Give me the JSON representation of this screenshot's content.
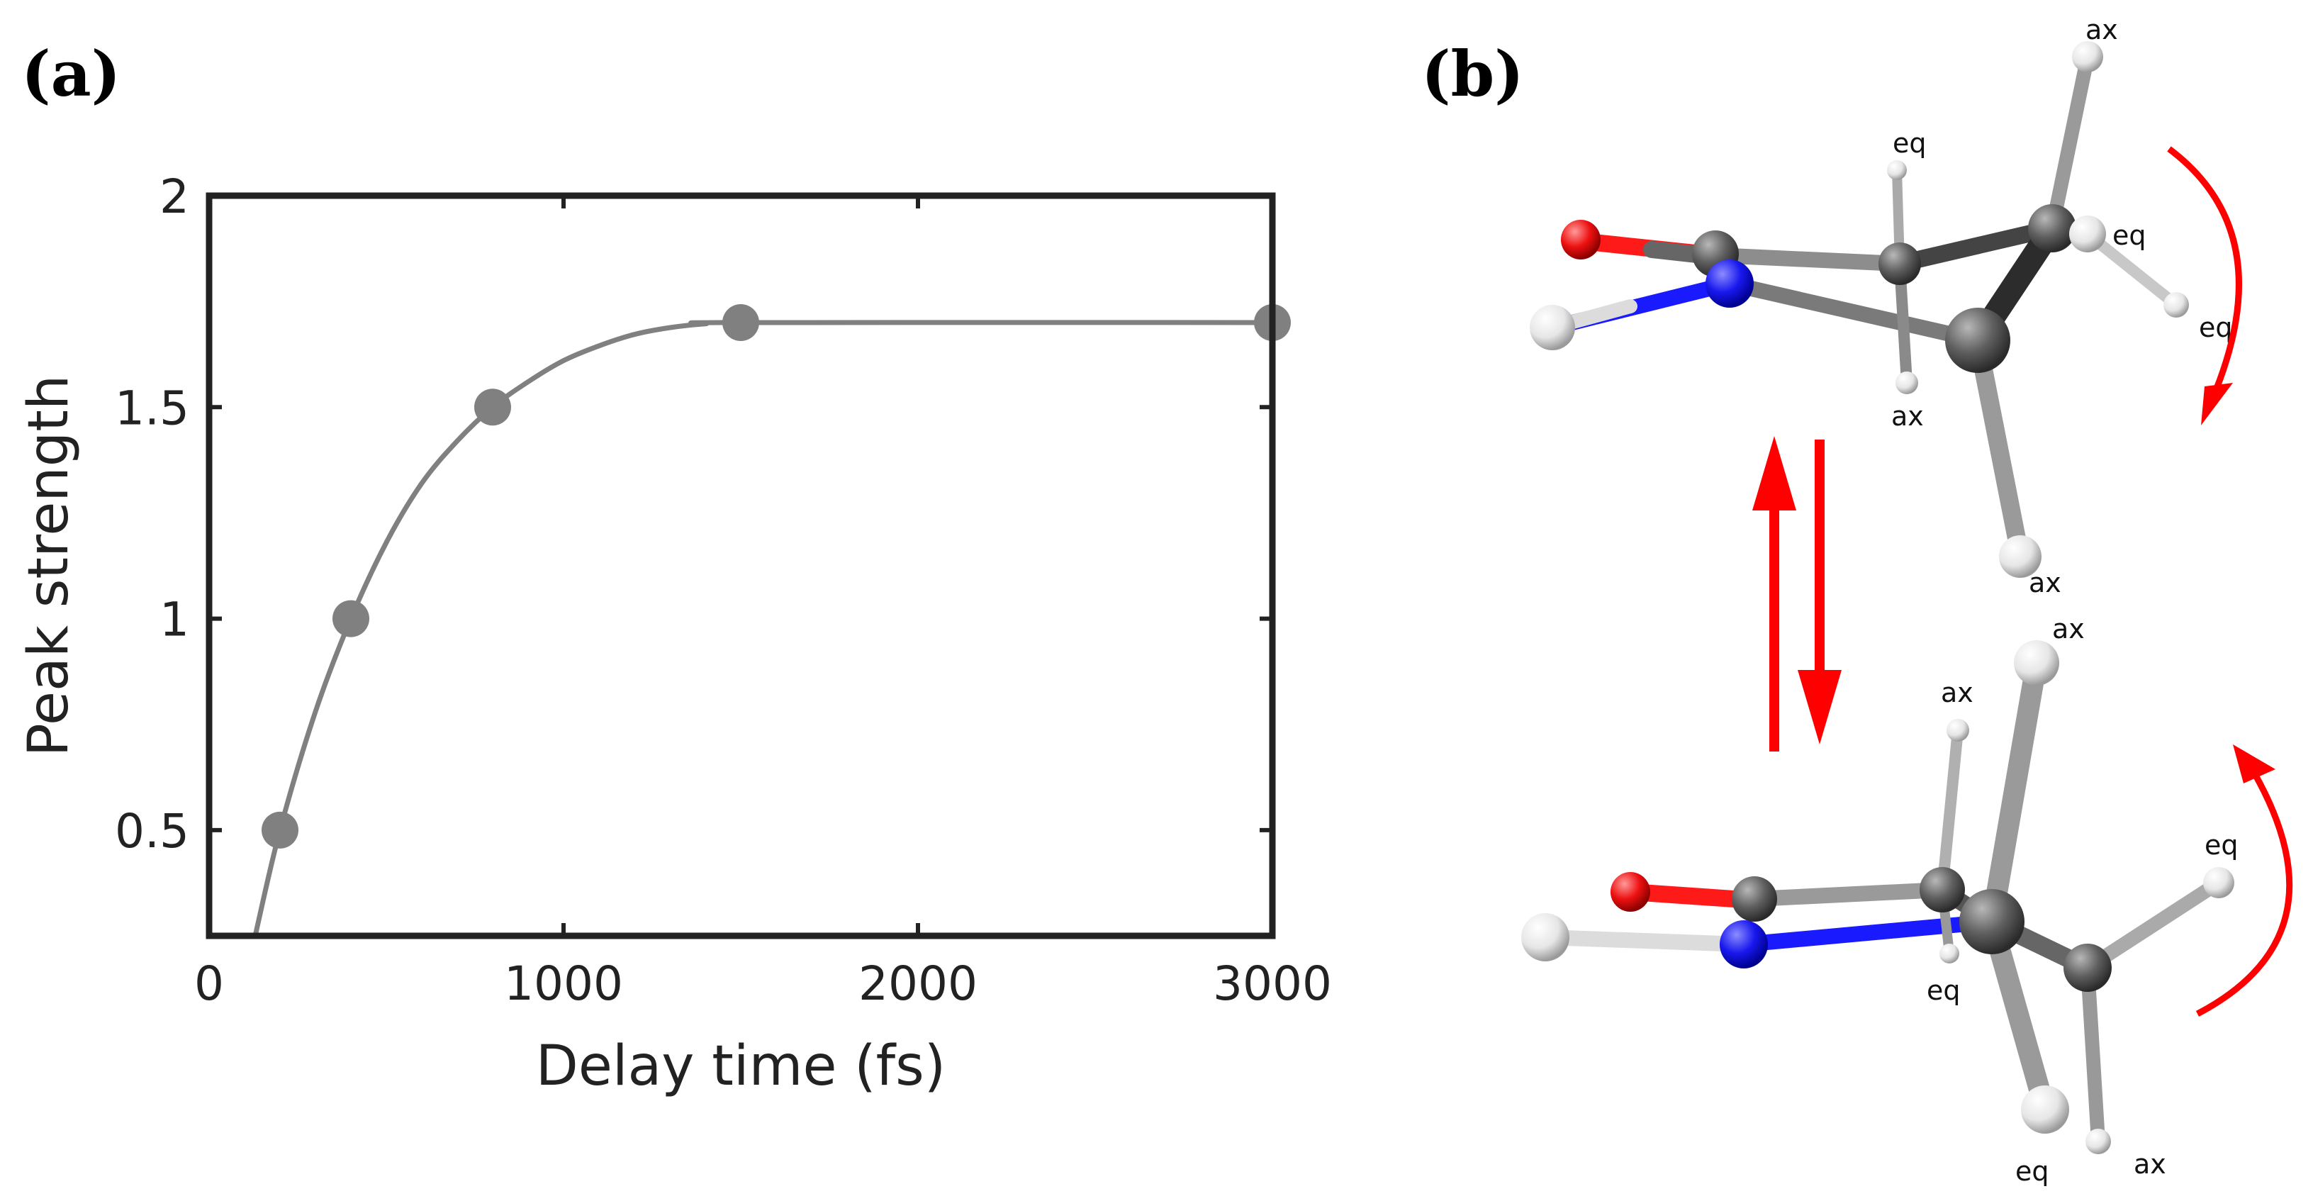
{
  "panels": {
    "a_label": "(a)",
    "b_label": "(b)"
  },
  "chart_data": {
    "type": "line",
    "xlabel": "Delay time (fs)",
    "ylabel": "Peak strength",
    "xlim": [
      0,
      3000
    ],
    "ylim": [
      0.25,
      2
    ],
    "xticks": [
      0,
      1000,
      2000,
      3000
    ],
    "yticks": [
      0.5,
      1,
      1.5,
      2
    ],
    "ytick_labels": [
      "0.5",
      "1",
      "1.5",
      "2"
    ],
    "points": [
      {
        "x": 200,
        "y": 0.5
      },
      {
        "x": 400,
        "y": 1.0
      },
      {
        "x": 800,
        "y": 1.5
      },
      {
        "x": 1500,
        "y": 1.7
      },
      {
        "x": 3000,
        "y": 1.7
      }
    ],
    "fit_curve": [
      [
        130,
        0.25
      ],
      [
        200,
        0.5
      ],
      [
        300,
        0.78
      ],
      [
        400,
        1.0
      ],
      [
        500,
        1.18
      ],
      [
        600,
        1.32
      ],
      [
        700,
        1.42
      ],
      [
        800,
        1.5
      ],
      [
        900,
        1.56
      ],
      [
        1000,
        1.61
      ],
      [
        1100,
        1.645
      ],
      [
        1200,
        1.672
      ],
      [
        1300,
        1.688
      ],
      [
        1400,
        1.697
      ],
      [
        1500,
        1.7
      ],
      [
        3000,
        1.7
      ]
    ],
    "series_color": "#808080",
    "grid": false
  },
  "molecules": {
    "top_labels": [
      "ax",
      "eq",
      "eq",
      "eq",
      "ax",
      "ax"
    ],
    "bottom_labels": [
      "ax",
      "ax",
      "eq",
      "eq",
      "eq",
      "ax"
    ],
    "colors": {
      "carbon": "#5a5a5a",
      "nitrogen": "#1a1aff",
      "oxygen": "#ff1a1a",
      "hydrogen": "#f2f2f2",
      "arrow": "#ff0000"
    }
  }
}
